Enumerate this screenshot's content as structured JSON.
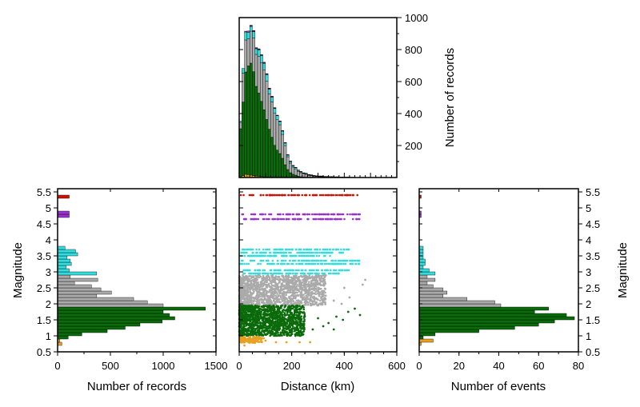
{
  "colors": {
    "M5.4": "#cc1100",
    "M4.8": "#9933cc",
    "M3.x": "#33dddd",
    "M2.x": "#aaaaaa",
    "M1.x": "#0b6b0b",
    "M0.x": "#e8a020"
  },
  "chart_data": [
    {
      "id": "distance-histogram",
      "type": "bar",
      "stacked": true,
      "xlabel": "",
      "ylabel": "Number of records",
      "xlim": [
        0,
        600
      ],
      "ylim": [
        0,
        1000
      ],
      "y_ticks": [
        200,
        400,
        600,
        800,
        1000
      ],
      "bin_width_km": 10,
      "bin_starts_km": [
        0,
        10,
        20,
        30,
        40,
        50,
        60,
        70,
        80,
        90,
        100,
        110,
        120,
        130,
        140,
        150,
        160,
        170,
        180,
        190,
        200,
        210,
        220,
        230,
        240,
        250,
        260,
        270,
        280,
        290,
        300,
        310,
        320,
        330,
        340,
        350,
        360,
        370,
        380,
        390,
        400,
        410,
        420,
        430,
        440,
        450,
        460,
        470
      ],
      "series": [
        {
          "color_key": "M0.x",
          "values": [
            5,
            12,
            20,
            18,
            15,
            12,
            10,
            8,
            6,
            4,
            3,
            2,
            2,
            1,
            1,
            0,
            0,
            0,
            0,
            0,
            0,
            0,
            0,
            0,
            0,
            0,
            0,
            0,
            0,
            0,
            0,
            0,
            0,
            0,
            0,
            0,
            0,
            0,
            0,
            0,
            0,
            0,
            0,
            0,
            0,
            0,
            0,
            0
          ]
        },
        {
          "color_key": "M1.x",
          "values": [
            300,
            460,
            640,
            680,
            700,
            650,
            560,
            520,
            470,
            420,
            360,
            300,
            250,
            200,
            170,
            150,
            120,
            80,
            50,
            30,
            20,
            15,
            8,
            5,
            3,
            2,
            1,
            1,
            0,
            0,
            0,
            0,
            0,
            0,
            0,
            0,
            0,
            0,
            0,
            0,
            0,
            0,
            0,
            0,
            0,
            0,
            0,
            0
          ]
        },
        {
          "color_key": "M2.x",
          "values": [
            40,
            180,
            200,
            170,
            200,
            210,
            200,
            230,
            240,
            250,
            240,
            220,
            220,
            200,
            190,
            180,
            150,
            120,
            80,
            60,
            45,
            40,
            30,
            25,
            20,
            18,
            12,
            10,
            8,
            6,
            5,
            4,
            3,
            3,
            2,
            2,
            1,
            1,
            0,
            0,
            0,
            0,
            0,
            0,
            0,
            0,
            0,
            0
          ]
        },
        {
          "color_key": "M3.x",
          "values": [
            8,
            30,
            50,
            40,
            30,
            40,
            35,
            40,
            45,
            40,
            40,
            30,
            30,
            30,
            25,
            20,
            20,
            15,
            10,
            10,
            8,
            6,
            6,
            5,
            4,
            4,
            3,
            3,
            2,
            2,
            2,
            2,
            1,
            1,
            1,
            1,
            1,
            1,
            1,
            1,
            1,
            1,
            0,
            0,
            0,
            0,
            0,
            0
          ]
        },
        {
          "color_key": "M4.8",
          "values": [
            0,
            0,
            5,
            8,
            5,
            5,
            5,
            5,
            5,
            5,
            5,
            5,
            4,
            4,
            3,
            3,
            3,
            3,
            2,
            2,
            2,
            2,
            2,
            2,
            2,
            2,
            2,
            2,
            2,
            2,
            2,
            3,
            2,
            2,
            2,
            2,
            2,
            2,
            1,
            1,
            1,
            1,
            1,
            1,
            1,
            1,
            0,
            0
          ]
        },
        {
          "color_key": "M5.4",
          "values": [
            0,
            0,
            0,
            0,
            2,
            2,
            2,
            2,
            2,
            2,
            2,
            2,
            2,
            2,
            1,
            1,
            1,
            1,
            1,
            1,
            1,
            1,
            1,
            1,
            1,
            1,
            1,
            1,
            1,
            1,
            1,
            1,
            1,
            1,
            1,
            1,
            1,
            1,
            1,
            1,
            1,
            1,
            1,
            1,
            0,
            0,
            0,
            0
          ]
        }
      ]
    },
    {
      "id": "magnitude-records-histogram",
      "type": "bar",
      "orientation": "horizontal",
      "xlabel": "Number of records",
      "ylabel": "Magnitude",
      "xlim": [
        0,
        1500
      ],
      "ylim": [
        0.5,
        5.6
      ],
      "x_ticks": [
        0,
        500,
        1000,
        1500
      ],
      "y_ticks": [
        0.5,
        1.0,
        1.5,
        2.0,
        2.5,
        3.0,
        3.5,
        4.0,
        4.5,
        5.0,
        5.5
      ],
      "bars": [
        {
          "m": 0.75,
          "v": 40,
          "c": "M0.x"
        },
        {
          "m": 0.85,
          "v": 20,
          "c": "M0.x"
        },
        {
          "m": 0.95,
          "v": 100,
          "c": "M1.x"
        },
        {
          "m": 1.05,
          "v": 230,
          "c": "M1.x"
        },
        {
          "m": 1.15,
          "v": 470,
          "c": "M1.x"
        },
        {
          "m": 1.25,
          "v": 640,
          "c": "M1.x"
        },
        {
          "m": 1.35,
          "v": 780,
          "c": "M1.x"
        },
        {
          "m": 1.45,
          "v": 990,
          "c": "M1.x"
        },
        {
          "m": 1.55,
          "v": 1110,
          "c": "M1.x"
        },
        {
          "m": 1.65,
          "v": 1060,
          "c": "M1.x"
        },
        {
          "m": 1.75,
          "v": 1000,
          "c": "M1.x"
        },
        {
          "m": 1.85,
          "v": 1400,
          "c": "M1.x"
        },
        {
          "m": 1.95,
          "v": 1000,
          "c": "M2.x"
        },
        {
          "m": 2.05,
          "v": 850,
          "c": "M2.x"
        },
        {
          "m": 2.15,
          "v": 720,
          "c": "M2.x"
        },
        {
          "m": 2.25,
          "v": 370,
          "c": "M2.x"
        },
        {
          "m": 2.35,
          "v": 510,
          "c": "M2.x"
        },
        {
          "m": 2.45,
          "v": 410,
          "c": "M2.x"
        },
        {
          "m": 2.55,
          "v": 320,
          "c": "M2.x"
        },
        {
          "m": 2.65,
          "v": 160,
          "c": "M2.x"
        },
        {
          "m": 2.75,
          "v": 380,
          "c": "M2.x"
        },
        {
          "m": 2.85,
          "v": 120,
          "c": "M2.x"
        },
        {
          "m": 2.95,
          "v": 370,
          "c": "M3.x"
        },
        {
          "m": 3.05,
          "v": 110,
          "c": "M3.x"
        },
        {
          "m": 3.15,
          "v": 80,
          "c": "M3.x"
        },
        {
          "m": 3.25,
          "v": 130,
          "c": "M3.x"
        },
        {
          "m": 3.35,
          "v": 120,
          "c": "M3.x"
        },
        {
          "m": 3.45,
          "v": 90,
          "c": "M3.x"
        },
        {
          "m": 3.55,
          "v": 190,
          "c": "M3.x"
        },
        {
          "m": 3.65,
          "v": 170,
          "c": "M3.x"
        },
        {
          "m": 3.75,
          "v": 70,
          "c": "M3.x"
        },
        {
          "m": 4.75,
          "v": 110,
          "c": "M4.8"
        },
        {
          "m": 4.85,
          "v": 110,
          "c": "M4.8"
        },
        {
          "m": 5.35,
          "v": 110,
          "c": "M5.4"
        }
      ]
    },
    {
      "id": "magnitude-distance-scatter",
      "type": "scatter",
      "xlabel": "Distance (km)",
      "ylabel": "",
      "xlim": [
        0,
        600
      ],
      "ylim": [
        0.5,
        5.6
      ],
      "x_ticks": [
        0,
        200,
        400,
        600
      ],
      "magnitude_rows": [
        {
          "m": 5.4,
          "x_min": 5,
          "x_max": 450,
          "c": "M5.4"
        },
        {
          "m": 4.8,
          "x_min": 10,
          "x_max": 460,
          "c": "M4.8"
        },
        {
          "m": 4.65,
          "x_min": 10,
          "x_max": 460,
          "c": "M4.8"
        },
        {
          "m": 3.7,
          "x_min": 5,
          "x_max": 420,
          "c": "M3.x"
        },
        {
          "m": 3.6,
          "x_min": 5,
          "x_max": 400,
          "c": "M3.x"
        },
        {
          "m": 3.5,
          "x_min": 5,
          "x_max": 350,
          "c": "M3.x"
        },
        {
          "m": 3.35,
          "x_min": 5,
          "x_max": 470,
          "c": "M3.x"
        },
        {
          "m": 3.25,
          "x_min": 5,
          "x_max": 480,
          "c": "M3.x"
        },
        {
          "m": 3.05,
          "x_min": 5,
          "x_max": 420,
          "c": "M3.x"
        },
        {
          "m": 2.95,
          "x_min": 5,
          "x_max": 380,
          "c": "M3.x"
        }
      ],
      "density_regions": [
        {
          "m_min": 1.95,
          "m_max": 2.9,
          "x_min": 0,
          "x_max": 330,
          "c": "M2.x"
        },
        {
          "m_min": 1.0,
          "m_max": 1.95,
          "x_min": 0,
          "x_max": 250,
          "c": "M1.x"
        }
      ],
      "outliers": [
        {
          "x": 470,
          "m": 2.6,
          "c": "M2.x"
        },
        {
          "x": 480,
          "m": 2.75,
          "c": "M2.x"
        },
        {
          "x": 420,
          "m": 2.2,
          "c": "M2.x"
        },
        {
          "x": 400,
          "m": 2.5,
          "c": "M2.x"
        },
        {
          "x": 390,
          "m": 2.0,
          "c": "M2.x"
        },
        {
          "x": 360,
          "m": 2.1,
          "c": "M2.x"
        },
        {
          "x": 440,
          "m": 1.85,
          "c": "M1.x"
        },
        {
          "x": 415,
          "m": 1.75,
          "c": "M1.x"
        },
        {
          "x": 395,
          "m": 1.5,
          "c": "M1.x"
        },
        {
          "x": 370,
          "m": 1.6,
          "c": "M1.x"
        },
        {
          "x": 340,
          "m": 1.4,
          "c": "M1.x"
        },
        {
          "x": 320,
          "m": 1.3,
          "c": "M1.x"
        },
        {
          "x": 300,
          "m": 1.55,
          "c": "M1.x"
        },
        {
          "x": 280,
          "m": 1.2,
          "c": "M1.x"
        },
        {
          "x": 360,
          "m": 1.2,
          "c": "M1.x"
        },
        {
          "x": 460,
          "m": 1.65,
          "c": "M1.x"
        },
        {
          "x": 30,
          "m": 0.9,
          "c": "M0.x"
        },
        {
          "x": 60,
          "m": 0.85,
          "c": "M0.x"
        },
        {
          "x": 100,
          "m": 0.85,
          "c": "M0.x"
        },
        {
          "x": 140,
          "m": 0.8,
          "c": "M0.x"
        },
        {
          "x": 180,
          "m": 0.8,
          "c": "M0.x"
        },
        {
          "x": 230,
          "m": 0.8,
          "c": "M0.x"
        },
        {
          "x": 270,
          "m": 0.8,
          "c": "M0.x"
        },
        {
          "x": 20,
          "m": 0.7,
          "c": "M0.x"
        }
      ]
    },
    {
      "id": "magnitude-events-histogram",
      "type": "bar",
      "orientation": "horizontal",
      "xlabel": "Number of events",
      "ylabel": "Magnitude",
      "xlim": [
        0,
        80
      ],
      "ylim": [
        0.5,
        5.6
      ],
      "x_ticks": [
        0,
        20,
        40,
        60,
        80
      ],
      "y_ticks": [
        0.5,
        1.0,
        1.5,
        2.0,
        2.5,
        3.0,
        3.5,
        4.0,
        4.5,
        5.0,
        5.5
      ],
      "bars": [
        {
          "m": 0.75,
          "v": 1,
          "c": "M0.x"
        },
        {
          "m": 0.85,
          "v": 7,
          "c": "M0.x"
        },
        {
          "m": 0.95,
          "v": 2,
          "c": "M1.x"
        },
        {
          "m": 1.05,
          "v": 8,
          "c": "M1.x"
        },
        {
          "m": 1.15,
          "v": 30,
          "c": "M1.x"
        },
        {
          "m": 1.25,
          "v": 48,
          "c": "M1.x"
        },
        {
          "m": 1.35,
          "v": 60,
          "c": "M1.x"
        },
        {
          "m": 1.45,
          "v": 68,
          "c": "M1.x"
        },
        {
          "m": 1.55,
          "v": 78,
          "c": "M1.x"
        },
        {
          "m": 1.65,
          "v": 74,
          "c": "M1.x"
        },
        {
          "m": 1.75,
          "v": 58,
          "c": "M1.x"
        },
        {
          "m": 1.85,
          "v": 65,
          "c": "M1.x"
        },
        {
          "m": 1.95,
          "v": 41,
          "c": "M2.x"
        },
        {
          "m": 2.05,
          "v": 38,
          "c": "M2.x"
        },
        {
          "m": 2.15,
          "v": 24,
          "c": "M2.x"
        },
        {
          "m": 2.25,
          "v": 12,
          "c": "M2.x"
        },
        {
          "m": 2.35,
          "v": 14,
          "c": "M2.x"
        },
        {
          "m": 2.45,
          "v": 12,
          "c": "M2.x"
        },
        {
          "m": 2.55,
          "v": 7,
          "c": "M2.x"
        },
        {
          "m": 2.65,
          "v": 4,
          "c": "M2.x"
        },
        {
          "m": 2.75,
          "v": 8,
          "c": "M2.x"
        },
        {
          "m": 2.85,
          "v": 4,
          "c": "M2.x"
        },
        {
          "m": 2.95,
          "v": 8,
          "c": "M3.x"
        },
        {
          "m": 3.05,
          "v": 5,
          "c": "M3.x"
        },
        {
          "m": 3.15,
          "v": 2,
          "c": "M3.x"
        },
        {
          "m": 3.25,
          "v": 3,
          "c": "M3.x"
        },
        {
          "m": 3.35,
          "v": 3,
          "c": "M3.x"
        },
        {
          "m": 3.45,
          "v": 2,
          "c": "M3.x"
        },
        {
          "m": 3.55,
          "v": 2,
          "c": "M3.x"
        },
        {
          "m": 3.65,
          "v": 2,
          "c": "M3.x"
        },
        {
          "m": 3.75,
          "v": 2,
          "c": "M3.x"
        },
        {
          "m": 4.75,
          "v": 1,
          "c": "M4.8"
        },
        {
          "m": 4.85,
          "v": 1,
          "c": "M4.8"
        },
        {
          "m": 5.35,
          "v": 1,
          "c": "M5.4"
        }
      ]
    }
  ]
}
